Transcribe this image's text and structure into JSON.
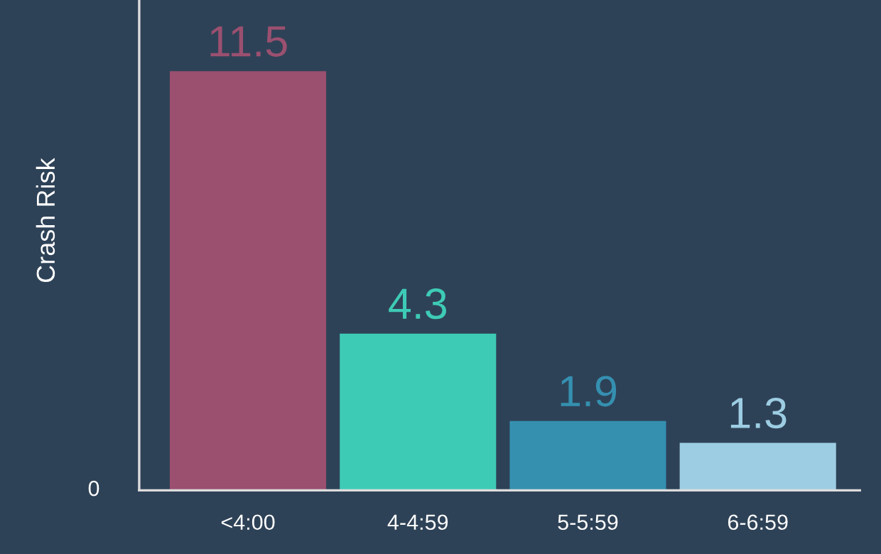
{
  "chart_data": {
    "type": "bar",
    "ylabel": "Crash Risk",
    "categories": [
      "<4:00",
      "4-4:59",
      "5-5:59",
      "6-6:59"
    ],
    "values": [
      11.5,
      4.3,
      1.9,
      1.3
    ],
    "colors": [
      "#9b5070",
      "#3ecbb5",
      "#3590b0",
      "#9dcde3"
    ],
    "data_labels": true,
    "annotations": [
      "0"
    ],
    "grid": false
  }
}
